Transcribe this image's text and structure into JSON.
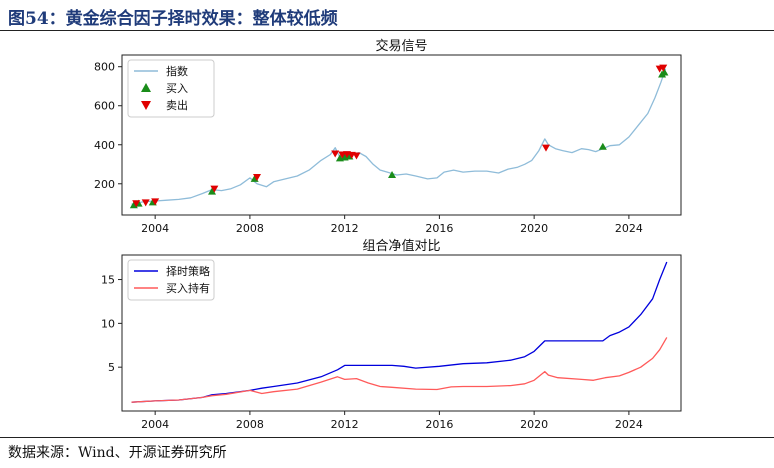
{
  "figure": {
    "title": "图54：黄金综合因子择时效果：整体较低频",
    "source": "数据来源：Wind、开源证券研究所"
  },
  "chart_data": [
    {
      "type": "line",
      "title": "交易信号",
      "xlabel": "",
      "ylabel": "",
      "xlim": [
        2002.6,
        2026.2
      ],
      "ylim": [
        40,
        860
      ],
      "x_ticks": [
        2004,
        2008,
        2012,
        2016,
        2020,
        2024
      ],
      "x_tick_labels": [
        "2004",
        "2008",
        "2012",
        "2016",
        "2020",
        "2024"
      ],
      "y_ticks": [
        200,
        400,
        600,
        800
      ],
      "y_tick_labels": [
        "200",
        "400",
        "600",
        "800"
      ],
      "legend_placement": "top-left",
      "grid": false,
      "series": [
        {
          "name": "指数",
          "color": "#8fbcd9",
          "x": [
            2003.0,
            2003.5,
            2004.0,
            2004.5,
            2005.0,
            2005.5,
            2006.0,
            2006.4,
            2006.8,
            2007.2,
            2007.6,
            2008.0,
            2008.3,
            2008.7,
            2009.0,
            2009.5,
            2010.0,
            2010.5,
            2011.0,
            2011.4,
            2011.6,
            2011.8,
            2012.0,
            2012.3,
            2012.6,
            2012.9,
            2013.2,
            2013.5,
            2013.8,
            2014.2,
            2014.6,
            2015.0,
            2015.5,
            2015.9,
            2016.2,
            2016.6,
            2017.0,
            2017.5,
            2018.0,
            2018.5,
            2018.9,
            2019.3,
            2019.6,
            2019.9,
            2020.2,
            2020.45,
            2020.6,
            2020.9,
            2021.2,
            2021.6,
            2022.0,
            2022.3,
            2022.6,
            2022.9,
            2023.2,
            2023.6,
            2024.0,
            2024.4,
            2024.8,
            2025.1,
            2025.35,
            2025.55
          ],
          "y": [
            95,
            108,
            112,
            116,
            120,
            128,
            150,
            170,
            165,
            175,
            195,
            230,
            200,
            185,
            210,
            225,
            240,
            270,
            320,
            350,
            385,
            335,
            345,
            350,
            360,
            340,
            300,
            270,
            260,
            245,
            250,
            240,
            225,
            230,
            260,
            270,
            260,
            265,
            265,
            255,
            275,
            285,
            300,
            320,
            370,
            430,
            400,
            380,
            370,
            360,
            380,
            375,
            365,
            380,
            395,
            400,
            440,
            500,
            560,
            640,
            720,
            790
          ]
        }
      ],
      "buy_signals": {
        "name": "买入",
        "color": "#1a8c1a",
        "x": [
          2003.1,
          2003.3,
          2003.9,
          2006.4,
          2008.2,
          2011.8,
          2012.0,
          2012.2,
          2014.0,
          2022.9,
          2025.4,
          2025.5
        ],
        "y": [
          90,
          98,
          105,
          160,
          225,
          330,
          335,
          340,
          245,
          390,
          760,
          770
        ]
      },
      "sell_signals": {
        "name": "卖出",
        "color": "#e00000",
        "x": [
          2003.2,
          2003.6,
          2004.0,
          2006.5,
          2008.3,
          2011.6,
          2011.9,
          2012.1,
          2012.3,
          2012.5,
          2020.5,
          2025.3,
          2025.45
        ],
        "y": [
          100,
          105,
          110,
          175,
          235,
          355,
          350,
          352,
          348,
          345,
          385,
          790,
          795
        ]
      }
    },
    {
      "type": "line",
      "title": "组合净值对比",
      "xlabel": "",
      "ylabel": "",
      "xlim": [
        2002.6,
        2026.2
      ],
      "ylim": [
        0,
        17.8
      ],
      "x_ticks": [
        2004,
        2008,
        2012,
        2016,
        2020,
        2024
      ],
      "x_tick_labels": [
        "2004",
        "2008",
        "2012",
        "2016",
        "2020",
        "2024"
      ],
      "y_ticks": [
        5,
        10,
        15
      ],
      "y_tick_labels": [
        "5",
        "10",
        "15"
      ],
      "legend_placement": "top-left",
      "grid": false,
      "series": [
        {
          "name": "择时策略",
          "color": "#0000dd",
          "x": [
            2003.0,
            2004.0,
            2005.0,
            2006.0,
            2006.4,
            2007.0,
            2008.0,
            2008.5,
            2009.0,
            2010.0,
            2011.0,
            2011.7,
            2012.0,
            2012.5,
            2013.0,
            2014.0,
            2014.5,
            2015.0,
            2016.0,
            2017.0,
            2018.0,
            2019.0,
            2019.6,
            2020.0,
            2020.45,
            2020.6,
            2021.0,
            2022.0,
            2022.9,
            2023.2,
            2023.6,
            2024.0,
            2024.5,
            2025.0,
            2025.3,
            2025.6
          ],
          "y": [
            1.0,
            1.15,
            1.25,
            1.55,
            1.85,
            2.0,
            2.35,
            2.6,
            2.8,
            3.2,
            3.9,
            4.7,
            5.2,
            5.2,
            5.2,
            5.2,
            5.1,
            4.9,
            5.1,
            5.4,
            5.5,
            5.8,
            6.2,
            6.8,
            8.0,
            8.0,
            8.0,
            8.0,
            8.0,
            8.6,
            9.0,
            9.6,
            11.0,
            12.8,
            15.0,
            17.0
          ]
        },
        {
          "name": "买入持有",
          "color": "#ff5a5a",
          "x": [
            2003.0,
            2004.0,
            2005.0,
            2006.0,
            2006.4,
            2007.0,
            2008.0,
            2008.5,
            2009.0,
            2010.0,
            2011.0,
            2011.7,
            2012.0,
            2012.5,
            2013.0,
            2013.5,
            2014.0,
            2015.0,
            2015.9,
            2016.5,
            2017.0,
            2018.0,
            2019.0,
            2019.6,
            2020.0,
            2020.45,
            2020.6,
            2021.0,
            2022.0,
            2022.5,
            2023.0,
            2023.6,
            2024.0,
            2024.5,
            2025.0,
            2025.3,
            2025.6
          ],
          "y": [
            1.0,
            1.15,
            1.25,
            1.55,
            1.75,
            1.9,
            2.35,
            2.0,
            2.2,
            2.5,
            3.3,
            3.9,
            3.6,
            3.7,
            3.2,
            2.8,
            2.7,
            2.5,
            2.45,
            2.75,
            2.8,
            2.8,
            2.9,
            3.1,
            3.5,
            4.5,
            4.1,
            3.8,
            3.6,
            3.5,
            3.8,
            4.0,
            4.4,
            5.0,
            6.0,
            7.0,
            8.4
          ]
        }
      ]
    }
  ]
}
